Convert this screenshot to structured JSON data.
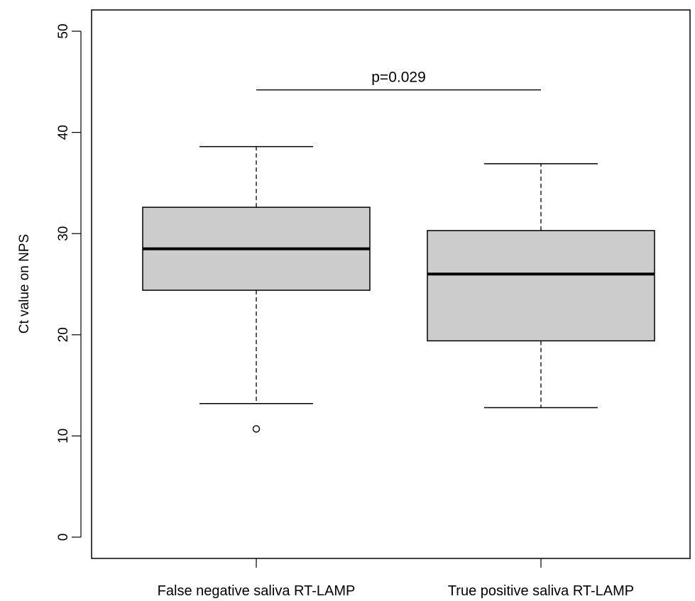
{
  "chart_data": {
    "type": "boxplot",
    "title": "",
    "xlabel": "",
    "ylabel": "Ct value on NPS",
    "ylim": [
      -2,
      52
    ],
    "yticks": [
      0,
      10,
      20,
      30,
      40,
      50
    ],
    "ytick_labels": [
      "0",
      "10",
      "20",
      "30",
      "40",
      "50"
    ],
    "grid": false,
    "legend": "none",
    "box_fill": "#cccccc",
    "categories": [
      "False negative saliva RT-LAMP",
      "True positive saliva RT-LAMP"
    ],
    "boxes": [
      {
        "label": "False negative saliva RT-LAMP",
        "whisker_low": 13.2,
        "q1": 24.4,
        "median": 28.5,
        "q3": 32.6,
        "whisker_high": 38.6,
        "outliers": [
          10.7
        ]
      },
      {
        "label": "True positive saliva RT-LAMP",
        "whisker_low": 12.8,
        "q1": 19.4,
        "median": 26.0,
        "q3": 30.3,
        "whisker_high": 36.9,
        "outliers": []
      }
    ],
    "annotations": [
      {
        "text": "p=0.029",
        "y": 44.2,
        "from": 0,
        "to": 1
      }
    ]
  }
}
